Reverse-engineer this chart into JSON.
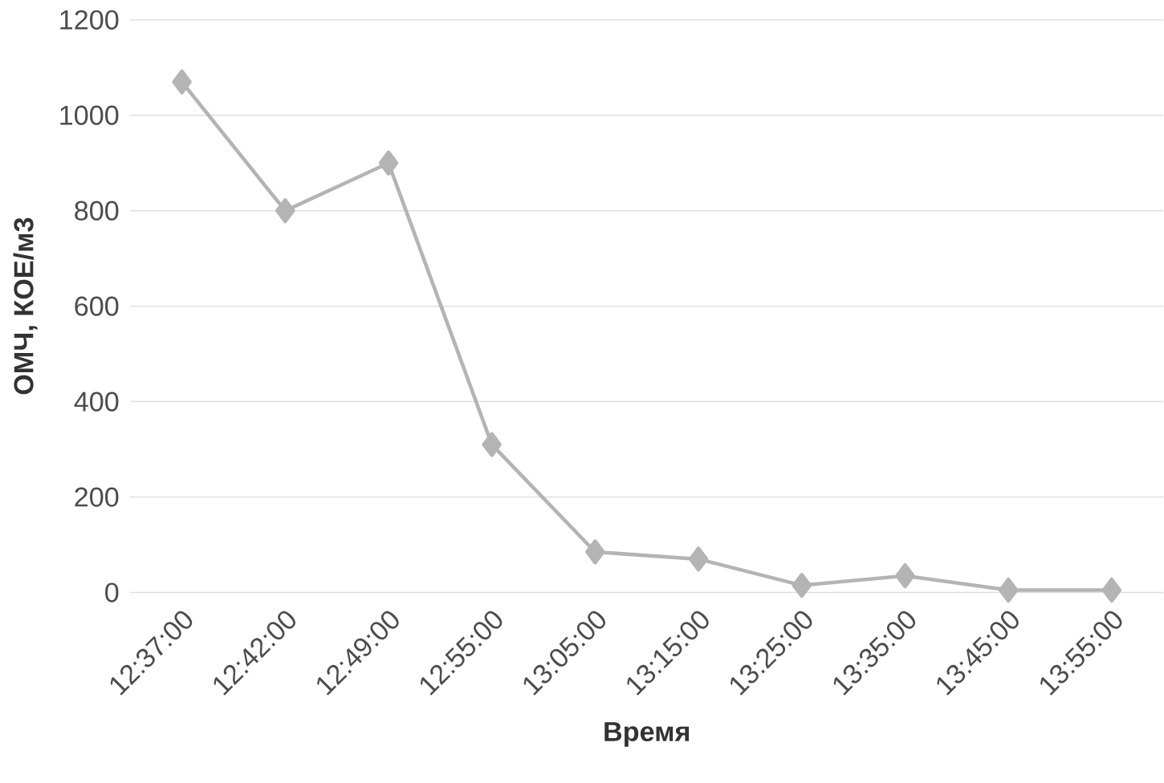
{
  "chart_data": {
    "type": "line",
    "xlabel": "Время",
    "ylabel": "ОМЧ, КОЕ/м3",
    "categories": [
      "12:37:00",
      "12:42:00",
      "12:49:00",
      "12:55:00",
      "13:05:00",
      "13:15:00",
      "13:25:00",
      "13:35:00",
      "13:45:00",
      "13:55:00"
    ],
    "series": [
      {
        "color": "#b4b4b4",
        "values": [
          1070,
          800,
          900,
          310,
          85,
          70,
          15,
          35,
          5,
          5
        ]
      }
    ],
    "ylim": [
      0,
      1200
    ],
    "yticks": [
      0,
      200,
      400,
      600,
      800,
      1000,
      1200
    ],
    "grid": "y",
    "marker": "diamond",
    "line_style": "solid"
  }
}
